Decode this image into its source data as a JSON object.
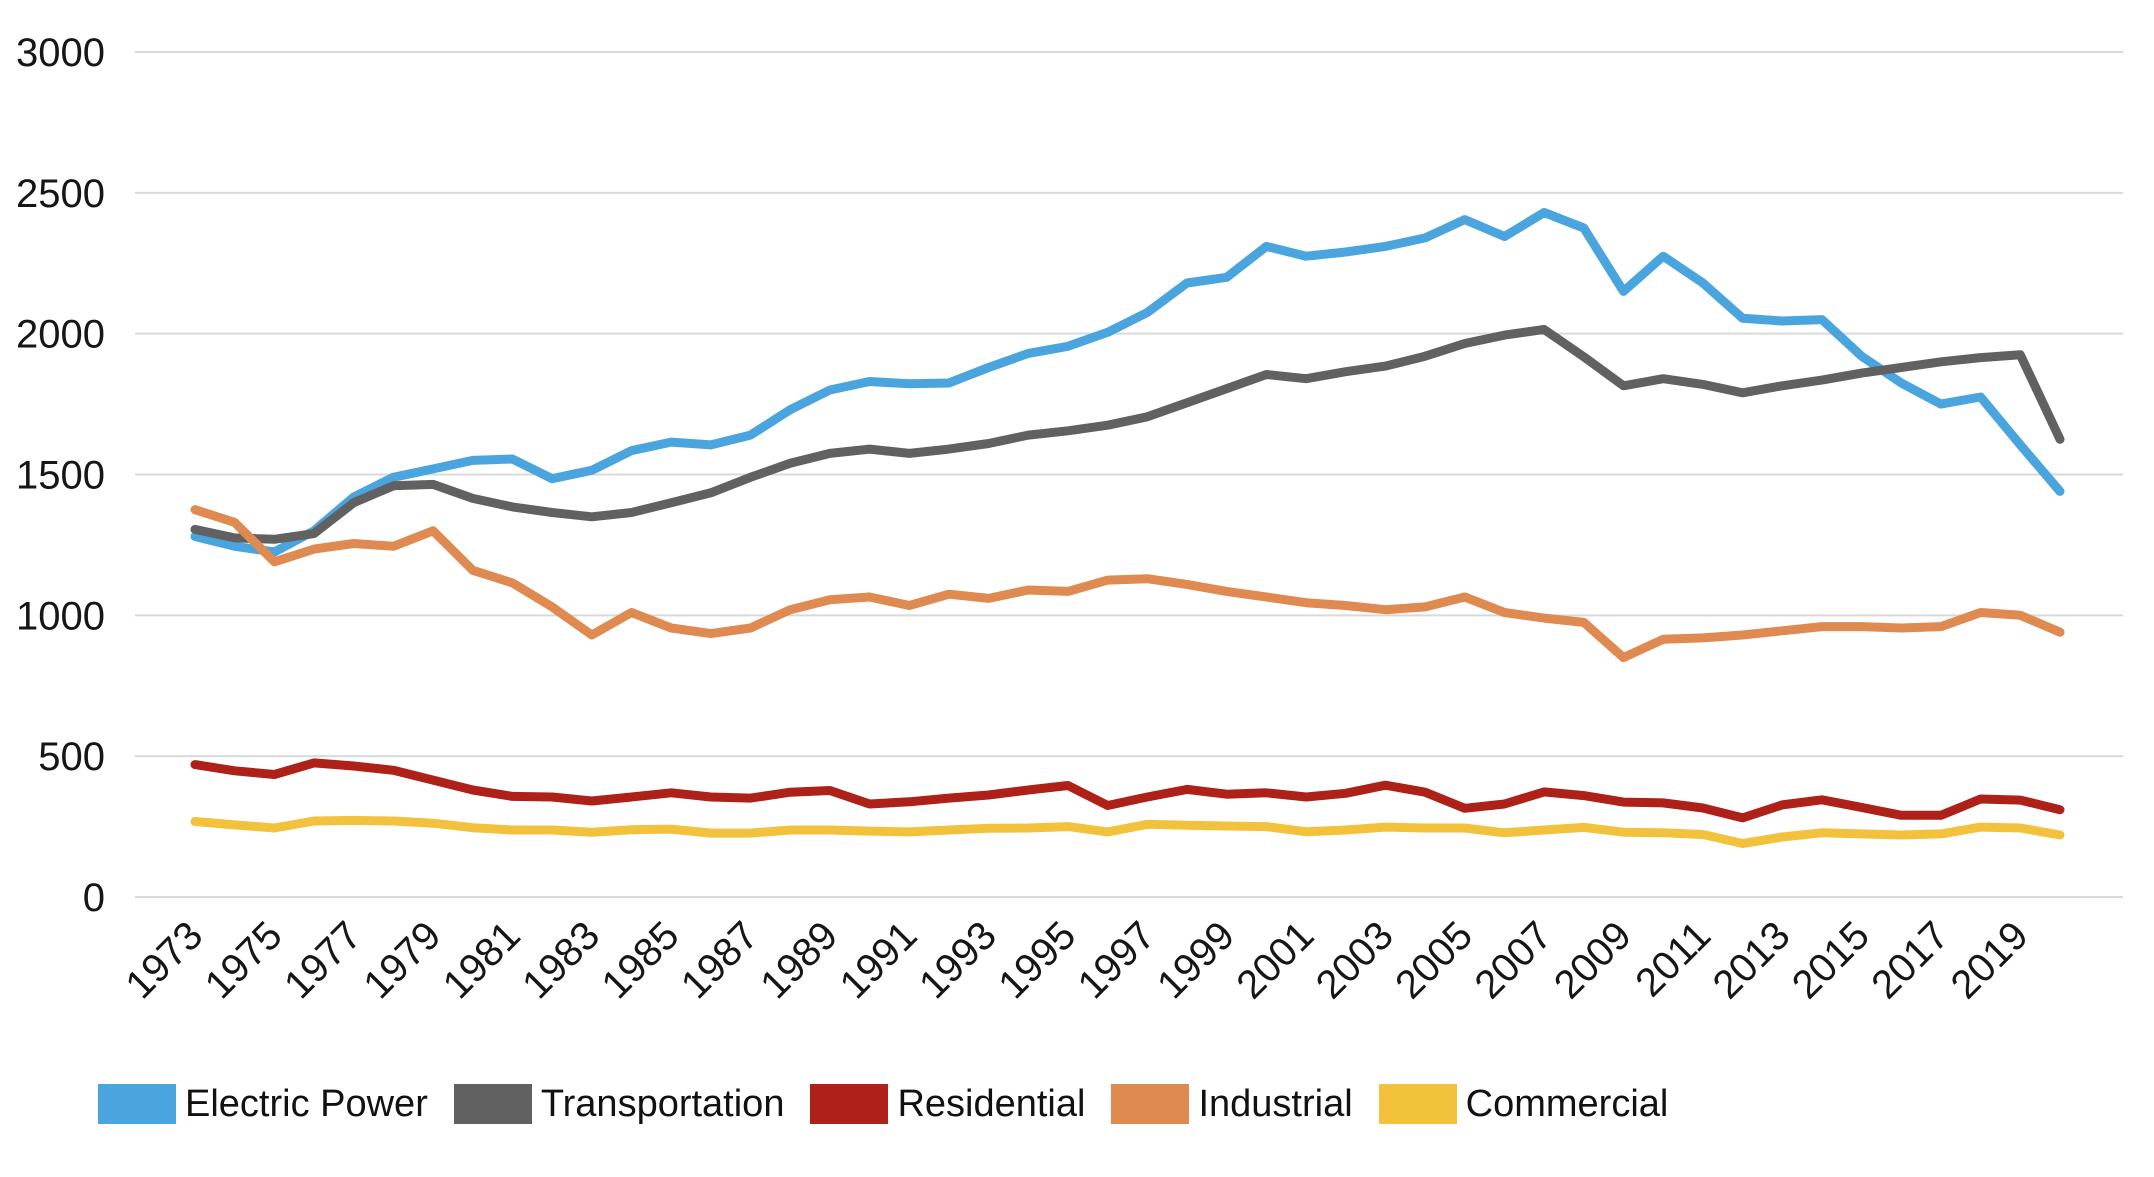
{
  "chart_data": {
    "type": "line",
    "title": "",
    "xlabel": "",
    "ylabel": "",
    "x": [
      1973,
      1974,
      1975,
      1976,
      1977,
      1978,
      1979,
      1980,
      1981,
      1982,
      1983,
      1984,
      1985,
      1986,
      1987,
      1988,
      1989,
      1990,
      1991,
      1992,
      1993,
      1994,
      1995,
      1996,
      1997,
      1998,
      1999,
      2000,
      2001,
      2002,
      2003,
      2004,
      2005,
      2006,
      2007,
      2008,
      2009,
      2010,
      2011,
      2012,
      2013,
      2014,
      2015,
      2016,
      2017,
      2018,
      2019,
      2020
    ],
    "x_tick_years": [
      1973,
      1975,
      1977,
      1979,
      1981,
      1983,
      1985,
      1987,
      1989,
      1991,
      1993,
      1995,
      1997,
      1999,
      2001,
      2003,
      2005,
      2007,
      2009,
      2011,
      2013,
      2015,
      2017,
      2019
    ],
    "ylim": [
      0,
      3000
    ],
    "yticks": [
      0,
      500,
      1000,
      1500,
      2000,
      2500,
      3000
    ],
    "grid": true,
    "legend_position": "bottom",
    "series": [
      {
        "name": "Electric Power",
        "color": "#4aa5de",
        "values": [
          1280,
          1245,
          1225,
          1300,
          1420,
          1490,
          1520,
          1550,
          1555,
          1485,
          1515,
          1585,
          1615,
          1605,
          1640,
          1730,
          1800,
          1830,
          1822,
          1825,
          1880,
          1930,
          1955,
          2005,
          2075,
          2180,
          2200,
          2310,
          2275,
          2290,
          2310,
          2340,
          2405,
          2345,
          2430,
          2375,
          2150,
          2275,
          2180,
          2055,
          2045,
          2050,
          1920,
          1825,
          1750,
          1775,
          1605,
          1440
        ]
      },
      {
        "name": "Transportation",
        "color": "#616161",
        "values": [
          1305,
          1275,
          1270,
          1290,
          1400,
          1460,
          1465,
          1415,
          1385,
          1365,
          1350,
          1365,
          1400,
          1435,
          1490,
          1540,
          1575,
          1590,
          1575,
          1590,
          1610,
          1640,
          1655,
          1675,
          1705,
          1755,
          1805,
          1855,
          1840,
          1865,
          1885,
          1920,
          1965,
          1995,
          2015,
          1918,
          1815,
          1840,
          1820,
          1790,
          1815,
          1835,
          1860,
          1880,
          1900,
          1915,
          1925,
          1625
        ]
      },
      {
        "name": "Residential",
        "color": "#ad2118",
        "values": [
          470,
          448,
          435,
          476,
          465,
          450,
          415,
          380,
          357,
          355,
          341,
          355,
          370,
          355,
          351,
          372,
          378,
          330,
          338,
          351,
          362,
          380,
          396,
          325,
          355,
          382,
          365,
          370,
          355,
          368,
          397,
          372,
          315,
          330,
          373,
          360,
          337,
          334,
          316,
          281,
          327,
          345,
          318,
          290,
          290,
          348,
          344,
          310
        ]
      },
      {
        "name": "Industrial",
        "color": "#df8a50",
        "values": [
          1375,
          1330,
          1190,
          1235,
          1255,
          1245,
          1300,
          1160,
          1115,
          1030,
          930,
          1010,
          955,
          935,
          955,
          1020,
          1055,
          1065,
          1035,
          1075,
          1060,
          1090,
          1085,
          1125,
          1130,
          1110,
          1085,
          1065,
          1045,
          1035,
          1020,
          1030,
          1065,
          1010,
          990,
          975,
          850,
          915,
          920,
          930,
          945,
          960,
          960,
          955,
          960,
          1010,
          1000,
          940
        ]
      },
      {
        "name": "Commercial",
        "color": "#f3c23c",
        "values": [
          268,
          256,
          245,
          270,
          272,
          270,
          262,
          246,
          238,
          238,
          230,
          239,
          241,
          227,
          227,
          238,
          238,
          234,
          231,
          238,
          244,
          245,
          250,
          231,
          258,
          255,
          252,
          250,
          232,
          238,
          248,
          245,
          245,
          228,
          238,
          247,
          230,
          228,
          222,
          190,
          213,
          228,
          224,
          220,
          224,
          248,
          245,
          220
        ]
      }
    ]
  }
}
